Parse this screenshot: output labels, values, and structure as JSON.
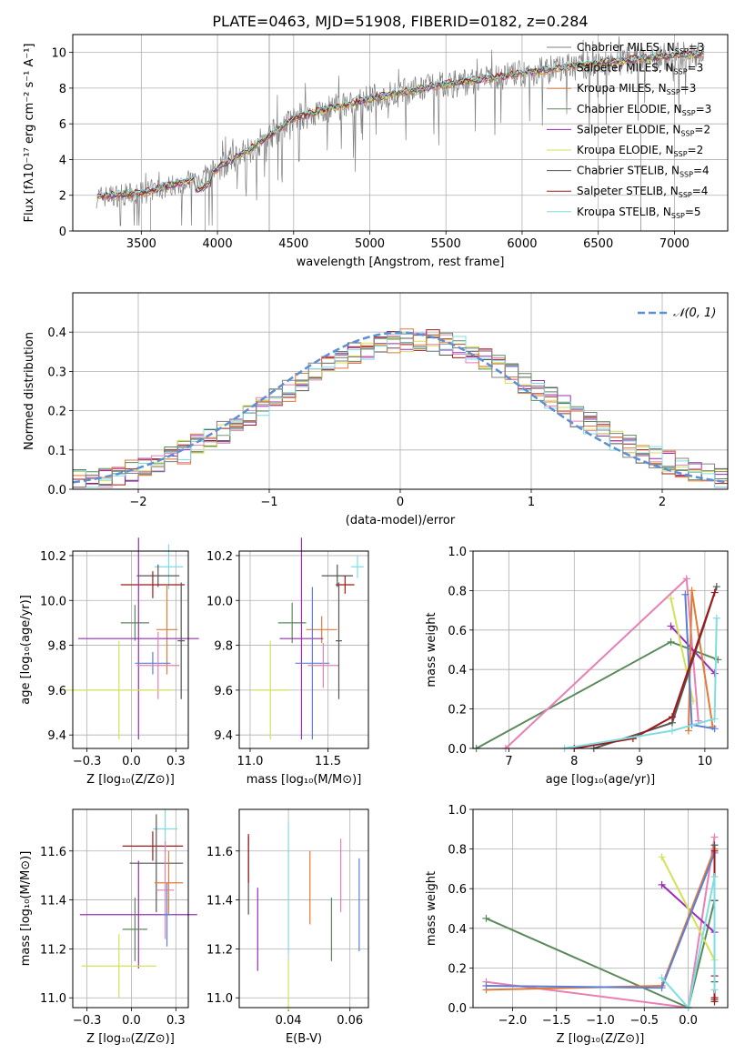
{
  "figure_title": "PLATE=0463, MJD=51908, FIBERID=0182, z=0.284",
  "colors": {
    "Chabrier MILES": "#808080",
    "Salpeter MILES": "#b0b0b0",
    "Kroupa MILES": "#e07b39",
    "Chabrier ELODIE": "#5a8a5a",
    "Salpeter ELODIE": "#9a2bb8",
    "Kroupa ELODIE": "#d4e157",
    "Chabrier STELIB": "#555555",
    "Salpeter STELIB": "#a01818",
    "Kroupa STELIB": "#7fdce0",
    "pink": "#e87fb5",
    "blue": "#5b7fd6",
    "gaussian": "#5b8fd6"
  },
  "chart_data": [
    {
      "type": "line",
      "title": "PLATE=0463, MJD=51908, FIBERID=0182, z=0.284",
      "xlabel": "wavelength [Angstrom, rest frame]",
      "ylabel": "Flux [fλ10⁻¹⁷ erg cm⁻² s⁻¹ A⁻¹]",
      "xlim": [
        3050,
        7350
      ],
      "ylim": [
        0,
        11
      ],
      "xticks": [
        3500,
        4000,
        4500,
        5000,
        5500,
        6000,
        6500,
        7000
      ],
      "yticks": [
        0,
        2,
        4,
        6,
        8,
        10
      ],
      "legend_position": "right",
      "legend": [
        {
          "label": "Chabrier MILES, N",
          "sub": "SSP",
          "tail": "=3",
          "color": "#808080"
        },
        {
          "label": "Salpeter MILES, N",
          "sub": "SSP",
          "tail": "=3",
          "color": "#b0b0b0"
        },
        {
          "label": "Kroupa MILES, N",
          "sub": "SSP",
          "tail": "=3",
          "color": "#e07b39"
        },
        {
          "label": "Chabrier ELODIE, N",
          "sub": "SSP",
          "tail": "=3",
          "color": "#5a8a5a"
        },
        {
          "label": "Salpeter ELODIE, N",
          "sub": "SSP",
          "tail": "=2",
          "color": "#9a2bb8"
        },
        {
          "label": "Kroupa ELODIE, N",
          "sub": "SSP",
          "tail": "=2",
          "color": "#d4e157"
        },
        {
          "label": "Chabrier STELIB, N",
          "sub": "SSP",
          "tail": "=4",
          "color": "#555555"
        },
        {
          "label": "Salpeter STELIB, N",
          "sub": "SSP",
          "tail": "=4",
          "color": "#a01818"
        },
        {
          "label": "Kroupa STELIB, N",
          "sub": "SSP",
          "tail": "=5",
          "color": "#7fdce0"
        }
      ],
      "continuum": {
        "x": [
          3200,
          3500,
          3900,
          4200,
          4500,
          5000,
          5500,
          6000,
          6500,
          7000,
          7200
        ],
        "y": [
          1.9,
          2.1,
          3.0,
          4.5,
          6.3,
          7.4,
          8.2,
          8.8,
          9.4,
          9.8,
          9.9
        ]
      }
    },
    {
      "type": "histogram",
      "xlabel": "(data-model)/error",
      "ylabel": "Normed distribution",
      "xlim": [
        -2.5,
        2.5
      ],
      "ylim": [
        0,
        0.5
      ],
      "xticks": [
        -2,
        -1,
        0,
        1,
        2
      ],
      "yticks": [
        0.0,
        0.1,
        0.2,
        0.3,
        0.4
      ],
      "legend": "𝒩(0, 1)",
      "gaussian": {
        "mean": 0,
        "sigma": 1
      },
      "bin_width": 0.1
    },
    {
      "type": "scatter",
      "xlabel": "Z [log₁₀(Z/Z⊙)]",
      "ylabel": "age  [log₁₀(age/yr)]",
      "xlim": [
        -0.33,
        0.32
      ],
      "ylim": [
        9.34,
        10.22
      ],
      "xticks": [
        -0.25,
        0.0,
        0.25
      ],
      "yticks": [
        9.4,
        9.6,
        9.8,
        10.0,
        10.2
      ],
      "points": [
        {
          "x": 0.21,
          "y": 10.15,
          "xerr": 0.08,
          "yerr": 0.1,
          "color": "#7fdce0"
        },
        {
          "x": 0.15,
          "y": 10.11,
          "xerr": 0.12,
          "yerr": 0.05,
          "color": "#555555"
        },
        {
          "x": 0.12,
          "y": 10.07,
          "xerr": 0.18,
          "yerr": 0.06,
          "color": "#a01818"
        },
        {
          "x": 0.02,
          "y": 9.9,
          "xerr": 0.08,
          "yerr": 0.08,
          "color": "#5a8a5a"
        },
        {
          "x": 0.2,
          "y": 9.87,
          "xerr": 0.06,
          "yerr": 0.2,
          "color": "#e07b39"
        },
        {
          "x": 0.04,
          "y": 9.83,
          "xerr": 0.34,
          "yerr": 0.45,
          "color": "#9a2bb8"
        },
        {
          "x": 0.12,
          "y": 9.72,
          "xerr": 0.1,
          "yerr": 0.05,
          "color": "#5b7fd6"
        },
        {
          "x": 0.15,
          "y": 9.71,
          "xerr": 0.12,
          "yerr": 0.15,
          "color": "#e87fb5"
        },
        {
          "x": 0.28,
          "y": 9.82,
          "xerr": 0.02,
          "yerr": 0.26,
          "color": "#555555"
        },
        {
          "x": -0.07,
          "y": 9.6,
          "xerr": 0.3,
          "yerr": 0.22,
          "color": "#d4e157"
        }
      ]
    },
    {
      "type": "scatter",
      "xlabel": "mass [log₁₀(M/M⊙)]",
      "ylabel": "",
      "xlim": [
        10.93,
        11.76
      ],
      "ylim": [
        9.34,
        10.22
      ],
      "xticks": [
        11.0,
        11.5
      ],
      "yticks": [
        9.4,
        9.6,
        9.8,
        10.0,
        10.2
      ],
      "points": [
        {
          "x": 11.69,
          "y": 10.15,
          "xerr": 0.04,
          "yerr": 0.05,
          "color": "#7fdce0"
        },
        {
          "x": 11.56,
          "y": 10.11,
          "xerr": 0.1,
          "yerr": 0.05,
          "color": "#555555"
        },
        {
          "x": 11.61,
          "y": 10.07,
          "xerr": 0.06,
          "yerr": 0.04,
          "color": "#a01818"
        },
        {
          "x": 11.27,
          "y": 9.9,
          "xerr": 0.09,
          "yerr": 0.09,
          "color": "#5a8a5a"
        },
        {
          "x": 11.46,
          "y": 9.87,
          "xerr": 0.1,
          "yerr": 0.06,
          "color": "#e07b39"
        },
        {
          "x": 11.33,
          "y": 9.83,
          "xerr": 0.14,
          "yerr": 0.45,
          "color": "#9a2bb8"
        },
        {
          "x": 11.4,
          "y": 9.72,
          "xerr": 0.11,
          "yerr": 0.34,
          "color": "#5b7fd6"
        },
        {
          "x": 11.47,
          "y": 9.71,
          "xerr": 0.1,
          "yerr": 0.1,
          "color": "#e87fb5"
        },
        {
          "x": 11.57,
          "y": 9.82,
          "xerr": 0.02,
          "yerr": 0.26,
          "color": "#555555"
        },
        {
          "x": 11.13,
          "y": 9.6,
          "xerr": 0.12,
          "yerr": 0.22,
          "color": "#d4e157"
        }
      ]
    },
    {
      "type": "line",
      "xlabel": "age  [log₁₀(age/yr)]",
      "ylabel": "mass weight",
      "xlim": [
        6.45,
        10.35
      ],
      "ylim": [
        0,
        1
      ],
      "xticks": [
        7,
        8,
        9,
        10
      ],
      "yticks": [
        0.0,
        0.2,
        0.4,
        0.6,
        0.8,
        1.0
      ],
      "series": [
        {
          "color": "#5a8a5a",
          "x": [
            6.5,
            9.48,
            10.2
          ],
          "y": [
            0.0,
            0.54,
            0.45
          ]
        },
        {
          "color": "#e87fb5",
          "x": [
            6.95,
            9.72,
            9.9
          ],
          "y": [
            0.0,
            0.86,
            0.14
          ]
        },
        {
          "color": "#9a2bb8",
          "x": [
            9.48,
            10.15
          ],
          "y": [
            0.62,
            0.38
          ]
        },
        {
          "color": "#d4e157",
          "x": [
            9.48,
            9.82
          ],
          "y": [
            0.76,
            0.24
          ]
        },
        {
          "color": "#e07b39",
          "x": [
            9.75,
            9.8,
            10.12
          ],
          "y": [
            0.09,
            0.8,
            0.11
          ]
        },
        {
          "color": "#5b7fd6",
          "x": [
            9.7,
            9.8,
            10.15
          ],
          "y": [
            0.78,
            0.12,
            0.1
          ]
        },
        {
          "color": "#555555",
          "x": [
            8.3,
            9.5,
            10.18
          ],
          "y": [
            0.0,
            0.13,
            0.82
          ]
        },
        {
          "color": "#a01818",
          "x": [
            8.0,
            8.9,
            9.5,
            10.15
          ],
          "y": [
            0.0,
            0.05,
            0.16,
            0.79
          ]
        },
        {
          "color": "#7fdce0",
          "x": [
            7.85,
            9.5,
            10.15,
            10.18
          ],
          "y": [
            0.0,
            0.09,
            0.15,
            0.66
          ]
        }
      ]
    },
    {
      "type": "scatter",
      "xlabel": "Z [log₁₀(Z/Z⊙)]",
      "ylabel": "mass [log₁₀(M/M⊙)]",
      "xlim": [
        -0.33,
        0.32
      ],
      "ylim": [
        10.96,
        11.77
      ],
      "xticks": [
        -0.25,
        0.0,
        0.25
      ],
      "yticks": [
        11.0,
        11.2,
        11.4,
        11.6
      ],
      "points": [
        {
          "x": 0.19,
          "y": 11.69,
          "xerr": 0.07,
          "yerr": 0.08,
          "color": "#7fdce0"
        },
        {
          "x": 0.12,
          "y": 11.62,
          "xerr": 0.17,
          "yerr": 0.06,
          "color": "#a01818"
        },
        {
          "x": 0.14,
          "y": 11.55,
          "xerr": 0.15,
          "yerr": 0.2,
          "color": "#555555"
        },
        {
          "x": 0.21,
          "y": 11.47,
          "xerr": 0.08,
          "yerr": 0.13,
          "color": "#e07b39"
        },
        {
          "x": 0.19,
          "y": 11.44,
          "xerr": 0.05,
          "yerr": 0.2,
          "color": "#e87fb5"
        },
        {
          "x": 0.04,
          "y": 11.34,
          "xerr": 0.33,
          "yerr": 0.22,
          "color": "#9a2bb8"
        },
        {
          "x": 0.2,
          "y": 11.34,
          "xerr": 0.03,
          "yerr": 0.13,
          "color": "#5b7fd6"
        },
        {
          "x": 0.02,
          "y": 11.28,
          "xerr": 0.07,
          "yerr": 0.13,
          "color": "#5a8a5a"
        },
        {
          "x": -0.07,
          "y": 11.13,
          "xerr": 0.21,
          "yerr": 0.13,
          "color": "#d4e157"
        }
      ]
    },
    {
      "type": "scatter",
      "xlabel": "E(B-V)",
      "ylabel": "",
      "xlim": [
        0.024,
        0.066
      ],
      "ylim": [
        10.96,
        11.77
      ],
      "xticks": [
        0.04,
        0.06
      ],
      "yticks": [
        11.0,
        11.2,
        11.4,
        11.6
      ],
      "points": [
        {
          "x": 0.027,
          "y": 11.5,
          "yerr": 0.16,
          "color": "#555555"
        },
        {
          "x": 0.027,
          "y": 11.57,
          "yerr": 0.1,
          "color": "#a01818"
        },
        {
          "x": 0.03,
          "y": 11.28,
          "yerr": 0.17,
          "color": "#9a2bb8"
        },
        {
          "x": 0.04,
          "y": 11.45,
          "yerr": 0.27,
          "color": "#7fdce0"
        },
        {
          "x": 0.04,
          "y": 11.05,
          "yerr": 0.1,
          "color": "#d4e157"
        },
        {
          "x": 0.047,
          "y": 11.45,
          "yerr": 0.15,
          "color": "#e07b39"
        },
        {
          "x": 0.054,
          "y": 11.28,
          "yerr": 0.13,
          "color": "#5a8a5a"
        },
        {
          "x": 0.057,
          "y": 11.5,
          "yerr": 0.15,
          "color": "#e87fb5"
        },
        {
          "x": 0.063,
          "y": 11.38,
          "yerr": 0.19,
          "color": "#5b7fd6"
        }
      ]
    },
    {
      "type": "line",
      "xlabel": "Z [log₁₀(Z/Z⊙)]",
      "ylabel": "mass weight",
      "xlim": [
        -2.45,
        0.45
      ],
      "ylim": [
        0,
        1
      ],
      "xticks": [
        -2.0,
        -1.5,
        -1.0,
        -0.5,
        0.0
      ],
      "yticks": [
        0.0,
        0.2,
        0.4,
        0.6,
        0.8,
        1.0
      ],
      "series": [
        {
          "color": "#5a8a5a",
          "x": [
            -2.3,
            0.0,
            0.3
          ],
          "y": [
            0.45,
            0.0,
            0.54
          ]
        },
        {
          "color": "#e87fb5",
          "x": [
            -2.3,
            0.0,
            0.3
          ],
          "y": [
            0.13,
            0.0,
            0.86
          ]
        },
        {
          "color": "#9a2bb8",
          "x": [
            -0.3,
            0.3
          ],
          "y": [
            0.62,
            0.38
          ]
        },
        {
          "color": "#d4e157",
          "x": [
            -0.3,
            0.3
          ],
          "y": [
            0.76,
            0.24
          ]
        },
        {
          "color": "#e07b39",
          "x": [
            -2.3,
            -0.3,
            0.3
          ],
          "y": [
            0.09,
            0.11,
            0.8
          ]
        },
        {
          "color": "#5b7fd6",
          "x": [
            -2.3,
            -0.3,
            0.3
          ],
          "y": [
            0.11,
            0.1,
            0.78
          ]
        },
        {
          "color": "#555555",
          "x": [
            0.3,
            0.3,
            0.3,
            0.3
          ],
          "y": [
            0.82,
            0.54,
            0.13,
            0.04
          ]
        },
        {
          "color": "#a01818",
          "x": [
            0.3,
            0.3,
            0.3,
            0.3
          ],
          "y": [
            0.79,
            0.16,
            0.05,
            0.03
          ]
        },
        {
          "color": "#7fdce0",
          "x": [
            -0.3,
            0.0,
            0.3,
            0.3
          ],
          "y": [
            0.15,
            0.0,
            0.66,
            0.09
          ]
        }
      ]
    }
  ]
}
